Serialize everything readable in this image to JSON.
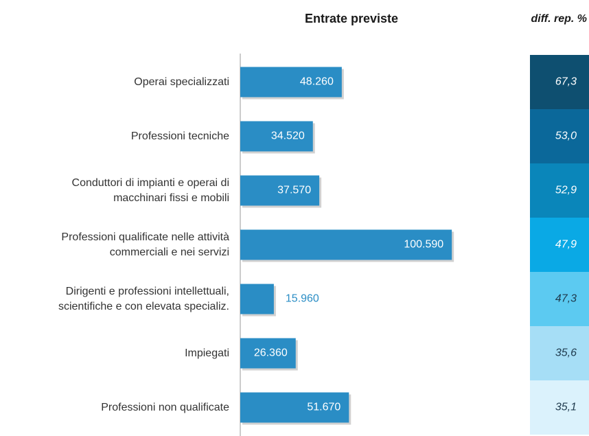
{
  "chart_data": {
    "type": "bar",
    "orientation": "horizontal",
    "title": "Entrate previste",
    "categories": [
      "Operai specializzati",
      "Professioni tecniche",
      "Conduttori di impianti e operai di\nmacchinari fissi e mobili",
      "Professioni qualificate nelle attività\ncommerciali e nei servizi",
      "Dirigenti e professioni intellettuali,\nscientifiche e con elevata specializ.",
      "Impiegati",
      "Professioni non qualificate"
    ],
    "values": [
      48260,
      34520,
      37570,
      100590,
      15960,
      26360,
      51670
    ],
    "value_labels": [
      "48.260",
      "34.520",
      "37.570",
      "100.590",
      "15.960",
      "26.360",
      "51.670"
    ],
    "color": "#2a8dc5",
    "xlim": [
      0,
      110000
    ],
    "diff": {
      "title": "diff. rep. %",
      "values": [
        67.3,
        53.0,
        52.9,
        47.9,
        47.3,
        35.6,
        35.1
      ],
      "value_labels": [
        "67,3",
        "53,0",
        "52,9",
        "47,9",
        "47,3",
        "35,6",
        "35,1"
      ],
      "colors": [
        "#0e4f70",
        "#0b689a",
        "#0a86ba",
        "#0aa9e5",
        "#5ccaf1",
        "#a6def6",
        "#dbf2fc"
      ]
    }
  }
}
